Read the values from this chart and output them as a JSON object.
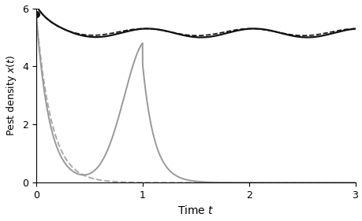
{
  "title": "",
  "xlabel": "Time $t$",
  "ylabel": "Pest density $x(t)$",
  "xlim": [
    0,
    3
  ],
  "ylim": [
    0,
    6
  ],
  "yticks": [
    0,
    2,
    4,
    6
  ],
  "xticks": [
    0,
    1,
    2,
    3
  ],
  "dot_marker_x": 0.0,
  "dot_marker_y": 5.8,
  "figsize": [
    4.6,
    2.81
  ],
  "dpi": 100,
  "background_color": "#ffffff",
  "color_black": "#111111",
  "color_gray_solid": "#999999",
  "color_gray_dashed": "#aaaaaa"
}
